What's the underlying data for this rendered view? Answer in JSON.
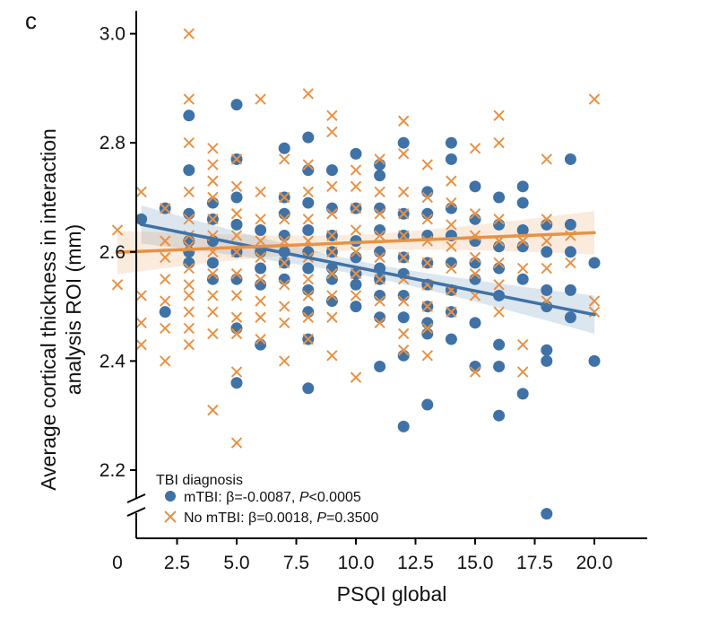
{
  "chart_data": {
    "type": "scatter",
    "panel_label": "c",
    "xlabel": "PSQI global",
    "ylabel_line1": "Average cortical thickness in interaction",
    "ylabel_line2": "analysis ROI (mm)",
    "xlim": [
      0,
      21
    ],
    "ylim": [
      2.1,
      3.05
    ],
    "x_ticks": [
      0,
      2.5,
      5.0,
      7.5,
      10.0,
      12.5,
      15.0,
      17.5,
      20.0
    ],
    "x_tick_labels": [
      "0",
      "2.5",
      "5.0",
      "7.5",
      "10.0",
      "12.5",
      "15.0",
      "17.5",
      "20.0"
    ],
    "y_ticks": [
      2.2,
      2.4,
      2.6,
      2.8,
      3.0
    ],
    "y_tick_labels": [
      "2.2",
      "2.4",
      "2.6",
      "2.8",
      "3.0"
    ],
    "axis_break": true,
    "legend": {
      "title": "TBI diagnosis",
      "placement": "bottom-left",
      "entries": [
        {
          "prefix": "mTBI: β=-0.0087, ",
          "p_label": "P",
          "suffix": "<0.0005"
        },
        {
          "prefix": "No mTBI: β=0.0018, ",
          "p_label": "P",
          "suffix": "=0.3500"
        }
      ]
    },
    "series": [
      {
        "name": "mTBI",
        "color": "#3f72a6",
        "marker": "circle",
        "fit": {
          "intercept": 2.659,
          "slope": -0.0087,
          "x_range": [
            1,
            20
          ],
          "ci_width": 0.035
        },
        "points": [
          [
            1,
            2.66
          ],
          [
            2,
            2.49
          ],
          [
            2,
            2.68
          ],
          [
            3,
            2.85
          ],
          [
            3,
            2.75
          ],
          [
            3,
            2.67
          ],
          [
            3,
            2.62
          ],
          [
            3,
            2.6
          ],
          [
            3,
            2.58
          ],
          [
            4,
            2.69
          ],
          [
            4,
            2.66
          ],
          [
            4,
            2.62
          ],
          [
            4,
            2.58
          ],
          [
            4,
            2.55
          ],
          [
            5,
            2.87
          ],
          [
            5,
            2.77
          ],
          [
            5,
            2.7
          ],
          [
            5,
            2.65
          ],
          [
            5,
            2.6
          ],
          [
            5,
            2.55
          ],
          [
            5,
            2.46
          ],
          [
            5,
            2.36
          ],
          [
            6,
            2.64
          ],
          [
            6,
            2.6
          ],
          [
            6,
            2.57
          ],
          [
            6,
            2.54
          ],
          [
            6,
            2.43
          ],
          [
            7,
            2.79
          ],
          [
            7,
            2.7
          ],
          [
            7,
            2.67
          ],
          [
            7,
            2.63
          ],
          [
            7,
            2.6
          ],
          [
            7,
            2.58
          ],
          [
            7,
            2.55
          ],
          [
            8,
            2.81
          ],
          [
            8,
            2.75
          ],
          [
            8,
            2.69
          ],
          [
            8,
            2.64
          ],
          [
            8,
            2.6
          ],
          [
            8,
            2.57
          ],
          [
            8,
            2.53
          ],
          [
            8,
            2.49
          ],
          [
            8,
            2.44
          ],
          [
            8,
            2.35
          ],
          [
            9,
            2.75
          ],
          [
            9,
            2.68
          ],
          [
            9,
            2.63
          ],
          [
            9,
            2.6
          ],
          [
            9,
            2.57
          ],
          [
            9,
            2.55
          ],
          [
            9,
            2.51
          ],
          [
            10,
            2.78
          ],
          [
            10,
            2.68
          ],
          [
            10,
            2.62
          ],
          [
            10,
            2.59
          ],
          [
            10,
            2.56
          ],
          [
            10,
            2.54
          ],
          [
            10,
            2.5
          ],
          [
            11,
            2.76
          ],
          [
            11,
            2.74
          ],
          [
            11,
            2.68
          ],
          [
            11,
            2.64
          ],
          [
            11,
            2.6
          ],
          [
            11,
            2.57
          ],
          [
            11,
            2.55
          ],
          [
            11,
            2.52
          ],
          [
            11,
            2.48
          ],
          [
            11,
            2.39
          ],
          [
            12,
            2.8
          ],
          [
            12,
            2.67
          ],
          [
            12,
            2.63
          ],
          [
            12,
            2.59
          ],
          [
            12,
            2.56
          ],
          [
            12,
            2.52
          ],
          [
            12,
            2.48
          ],
          [
            12,
            2.41
          ],
          [
            12,
            2.28
          ],
          [
            13,
            2.71
          ],
          [
            13,
            2.67
          ],
          [
            13,
            2.63
          ],
          [
            13,
            2.58
          ],
          [
            13,
            2.54
          ],
          [
            13,
            2.5
          ],
          [
            13,
            2.47
          ],
          [
            13,
            2.45
          ],
          [
            13,
            2.32
          ],
          [
            14,
            2.8
          ],
          [
            14,
            2.77
          ],
          [
            14,
            2.68
          ],
          [
            14,
            2.63
          ],
          [
            14,
            2.58
          ],
          [
            14,
            2.53
          ],
          [
            14,
            2.49
          ],
          [
            14,
            2.44
          ],
          [
            15,
            2.72
          ],
          [
            15,
            2.66
          ],
          [
            15,
            2.62
          ],
          [
            15,
            2.58
          ],
          [
            15,
            2.55
          ],
          [
            15,
            2.47
          ],
          [
            15,
            2.39
          ],
          [
            16,
            2.7
          ],
          [
            16,
            2.65
          ],
          [
            16,
            2.61
          ],
          [
            16,
            2.57
          ],
          [
            16,
            2.52
          ],
          [
            16,
            2.43
          ],
          [
            16,
            2.39
          ],
          [
            16,
            2.3
          ],
          [
            17,
            2.72
          ],
          [
            17,
            2.69
          ],
          [
            17,
            2.64
          ],
          [
            17,
            2.61
          ],
          [
            17,
            2.55
          ],
          [
            17,
            2.34
          ],
          [
            18,
            2.65
          ],
          [
            18,
            2.6
          ],
          [
            18,
            2.53
          ],
          [
            18,
            2.5
          ],
          [
            18,
            2.42
          ],
          [
            18,
            2.4
          ],
          [
            18,
            2.12
          ],
          [
            19,
            2.77
          ],
          [
            19,
            2.65
          ],
          [
            19,
            2.6
          ],
          [
            19,
            2.53
          ],
          [
            19,
            2.48
          ],
          [
            20,
            2.58
          ],
          [
            20,
            2.4
          ]
        ]
      },
      {
        "name": "No mTBI",
        "color": "#e89245",
        "marker": "x",
        "fit": {
          "intercept": 2.5992,
          "slope": 0.0018,
          "x_range": [
            0,
            20
          ],
          "ci_width": 0.04
        },
        "points": [
          [
            0,
            2.64
          ],
          [
            0,
            2.54
          ],
          [
            1,
            2.71
          ],
          [
            1,
            2.52
          ],
          [
            1,
            2.47
          ],
          [
            1,
            2.43
          ],
          [
            2,
            2.68
          ],
          [
            2,
            2.62
          ],
          [
            2,
            2.59
          ],
          [
            2,
            2.55
          ],
          [
            2,
            2.51
          ],
          [
            2,
            2.46
          ],
          [
            2,
            2.4
          ],
          [
            3,
            3.0
          ],
          [
            3,
            2.88
          ],
          [
            3,
            2.8
          ],
          [
            3,
            2.71
          ],
          [
            3,
            2.66
          ],
          [
            3,
            2.63
          ],
          [
            3,
            2.61
          ],
          [
            3,
            2.57
          ],
          [
            3,
            2.54
          ],
          [
            3,
            2.52
          ],
          [
            3,
            2.49
          ],
          [
            3,
            2.46
          ],
          [
            3,
            2.43
          ],
          [
            4,
            2.79
          ],
          [
            4,
            2.76
          ],
          [
            4,
            2.73
          ],
          [
            4,
            2.7
          ],
          [
            4,
            2.66
          ],
          [
            4,
            2.63
          ],
          [
            4,
            2.6
          ],
          [
            4,
            2.56
          ],
          [
            4,
            2.52
          ],
          [
            4,
            2.49
          ],
          [
            4,
            2.45
          ],
          [
            4,
            2.31
          ],
          [
            5,
            2.77
          ],
          [
            5,
            2.72
          ],
          [
            5,
            2.67
          ],
          [
            5,
            2.63
          ],
          [
            5,
            2.6
          ],
          [
            5,
            2.56
          ],
          [
            5,
            2.52
          ],
          [
            5,
            2.48
          ],
          [
            5,
            2.45
          ],
          [
            5,
            2.38
          ],
          [
            5,
            2.25
          ],
          [
            6,
            2.88
          ],
          [
            6,
            2.71
          ],
          [
            6,
            2.66
          ],
          [
            6,
            2.62
          ],
          [
            6,
            2.59
          ],
          [
            6,
            2.55
          ],
          [
            6,
            2.51
          ],
          [
            6,
            2.48
          ],
          [
            6,
            2.44
          ],
          [
            7,
            2.77
          ],
          [
            7,
            2.7
          ],
          [
            7,
            2.66
          ],
          [
            7,
            2.62
          ],
          [
            7,
            2.58
          ],
          [
            7,
            2.54
          ],
          [
            7,
            2.5
          ],
          [
            7,
            2.47
          ],
          [
            7,
            2.4
          ],
          [
            8,
            2.89
          ],
          [
            8,
            2.76
          ],
          [
            8,
            2.71
          ],
          [
            8,
            2.66
          ],
          [
            8,
            2.62
          ],
          [
            8,
            2.59
          ],
          [
            8,
            2.55
          ],
          [
            8,
            2.52
          ],
          [
            8,
            2.48
          ],
          [
            8,
            2.44
          ],
          [
            9,
            2.85
          ],
          [
            9,
            2.82
          ],
          [
            9,
            2.72
          ],
          [
            9,
            2.67
          ],
          [
            9,
            2.63
          ],
          [
            9,
            2.6
          ],
          [
            9,
            2.56
          ],
          [
            9,
            2.52
          ],
          [
            9,
            2.48
          ],
          [
            9,
            2.41
          ],
          [
            10,
            2.75
          ],
          [
            10,
            2.72
          ],
          [
            10,
            2.68
          ],
          [
            10,
            2.64
          ],
          [
            10,
            2.6
          ],
          [
            10,
            2.56
          ],
          [
            10,
            2.52
          ],
          [
            10,
            2.37
          ],
          [
            11,
            2.77
          ],
          [
            11,
            2.71
          ],
          [
            11,
            2.67
          ],
          [
            11,
            2.63
          ],
          [
            11,
            2.59
          ],
          [
            11,
            2.55
          ],
          [
            11,
            2.51
          ],
          [
            11,
            2.47
          ],
          [
            12,
            2.84
          ],
          [
            12,
            2.78
          ],
          [
            12,
            2.71
          ],
          [
            12,
            2.67
          ],
          [
            12,
            2.63
          ],
          [
            12,
            2.59
          ],
          [
            12,
            2.55
          ],
          [
            12,
            2.51
          ],
          [
            12,
            2.45
          ],
          [
            12,
            2.42
          ],
          [
            13,
            2.76
          ],
          [
            13,
            2.7
          ],
          [
            13,
            2.66
          ],
          [
            13,
            2.62
          ],
          [
            13,
            2.58
          ],
          [
            13,
            2.54
          ],
          [
            13,
            2.5
          ],
          [
            13,
            2.46
          ],
          [
            13,
            2.41
          ],
          [
            14,
            2.73
          ],
          [
            14,
            2.69
          ],
          [
            14,
            2.65
          ],
          [
            14,
            2.61
          ],
          [
            14,
            2.57
          ],
          [
            14,
            2.53
          ],
          [
            14,
            2.49
          ],
          [
            15,
            2.79
          ],
          [
            15,
            2.67
          ],
          [
            15,
            2.63
          ],
          [
            15,
            2.59
          ],
          [
            15,
            2.56
          ],
          [
            15,
            2.52
          ],
          [
            15,
            2.38
          ],
          [
            16,
            2.85
          ],
          [
            16,
            2.8
          ],
          [
            16,
            2.66
          ],
          [
            16,
            2.62
          ],
          [
            16,
            2.58
          ],
          [
            16,
            2.54
          ],
          [
            16,
            2.49
          ],
          [
            17,
            2.62
          ],
          [
            17,
            2.57
          ],
          [
            17,
            2.43
          ],
          [
            17,
            2.38
          ],
          [
            18,
            2.77
          ],
          [
            18,
            2.66
          ],
          [
            18,
            2.62
          ],
          [
            18,
            2.57
          ],
          [
            18,
            2.51
          ],
          [
            19,
            2.63
          ],
          [
            19,
            2.58
          ],
          [
            20,
            2.88
          ],
          [
            20,
            2.51
          ],
          [
            20,
            2.49
          ]
        ]
      }
    ]
  }
}
